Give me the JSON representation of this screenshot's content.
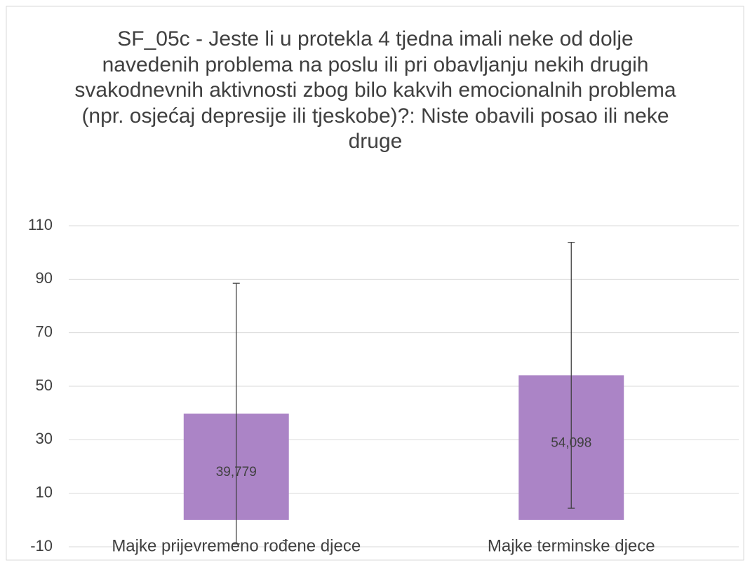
{
  "chart_data": {
    "type": "bar",
    "title": "SF_05c - Jeste li u protekla 4 tjedna imali neke od dolje navedenih problema na poslu ili pri obavljanju nekih drugih svakodnevnih aktivnosti zbog bilo kakvih emocionalnih problema (npr. osjećaj depresije ili tjeskobe)?: Niste obavili posao ili neke druge",
    "categories": [
      "Majke prijevremeno rođene djece",
      "Majke terminske djece"
    ],
    "values": [
      39.779,
      54.098
    ],
    "value_labels": [
      "39,779",
      "54,098"
    ],
    "errors": [
      48.7,
      49.7
    ],
    "color": "#ab84c6",
    "ylim": [
      -10,
      110
    ],
    "yticks": [
      -10,
      10,
      30,
      50,
      70,
      90,
      110
    ],
    "grid": true
  }
}
